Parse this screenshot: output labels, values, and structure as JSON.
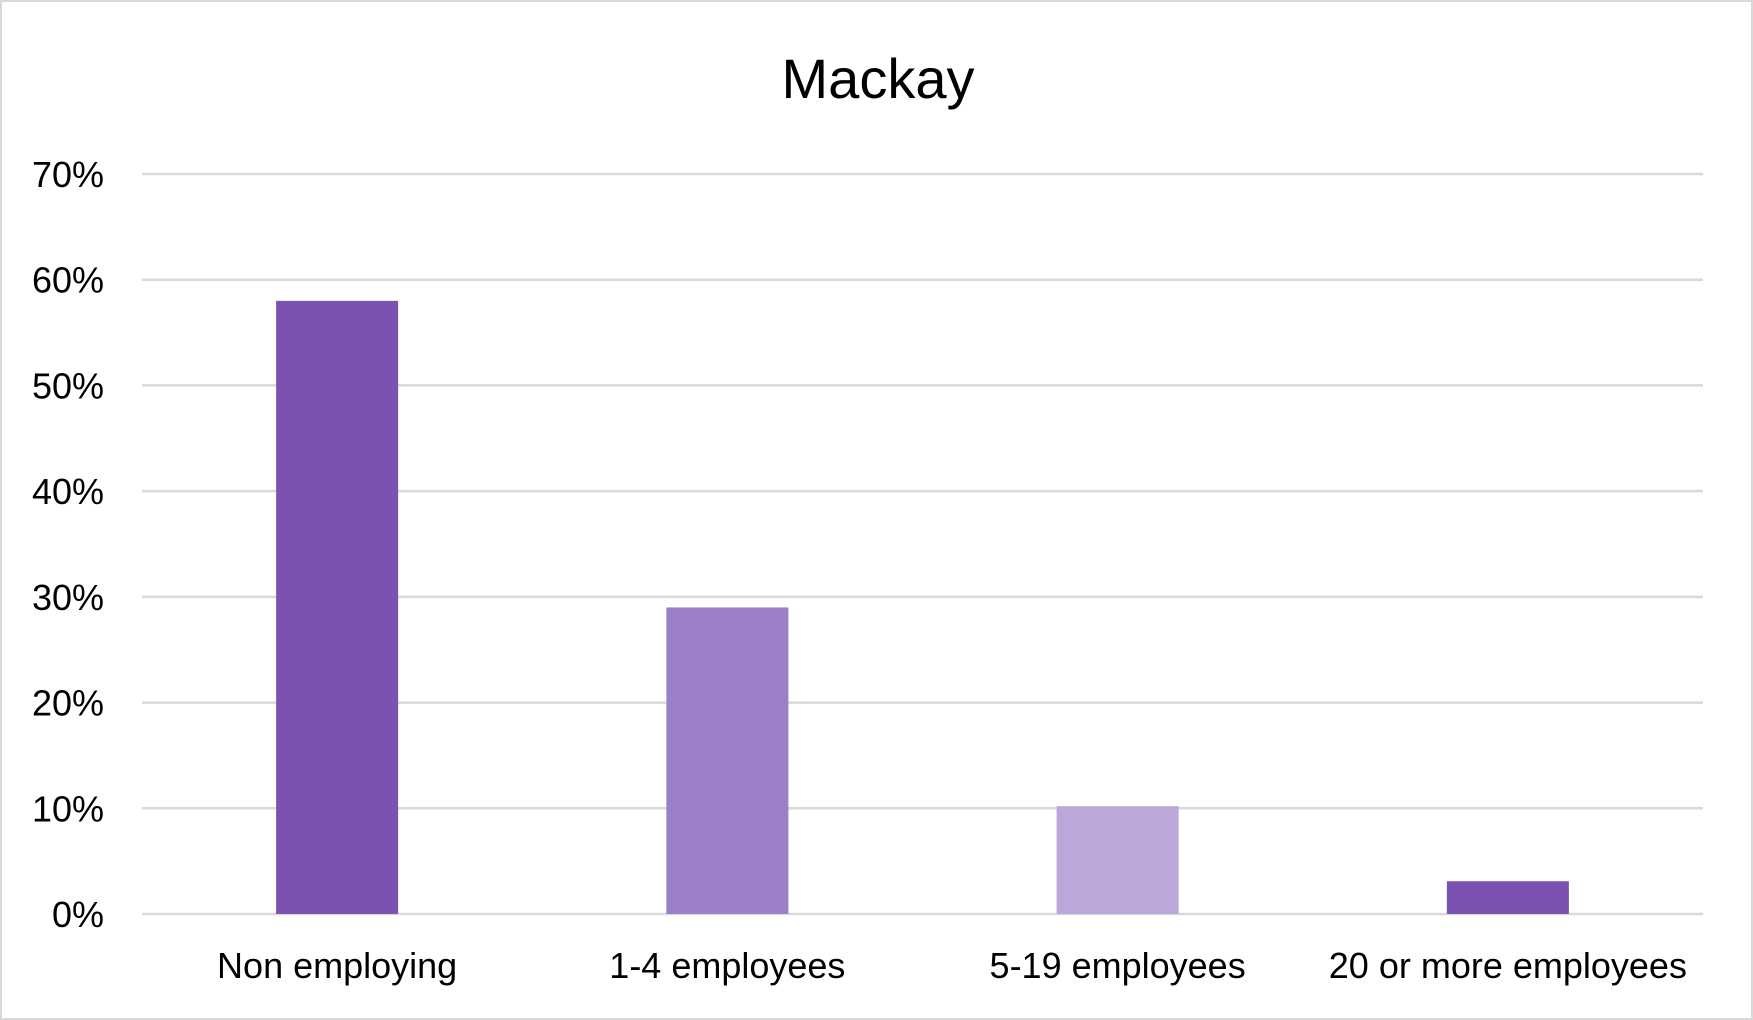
{
  "chart_data": {
    "type": "bar",
    "title": "Mackay",
    "xlabel": "",
    "ylabel": "",
    "categories": [
      "Non employing",
      "1-4 employees",
      "5-19 employees",
      "20 or more employees"
    ],
    "values": [
      58,
      29,
      10.2,
      3.1
    ],
    "value_unit": "%",
    "ylim": [
      0,
      70
    ],
    "yticks": [
      0,
      10,
      20,
      30,
      40,
      50,
      60,
      70
    ],
    "ytick_labels": [
      "0%",
      "10%",
      "20%",
      "30%",
      "40%",
      "50%",
      "60%",
      "70%"
    ],
    "bar_colors": [
      "#7b52b2",
      "#9b7fc7",
      "#bba7d9",
      "#7b52b2"
    ],
    "grid": true,
    "legend": "none"
  }
}
